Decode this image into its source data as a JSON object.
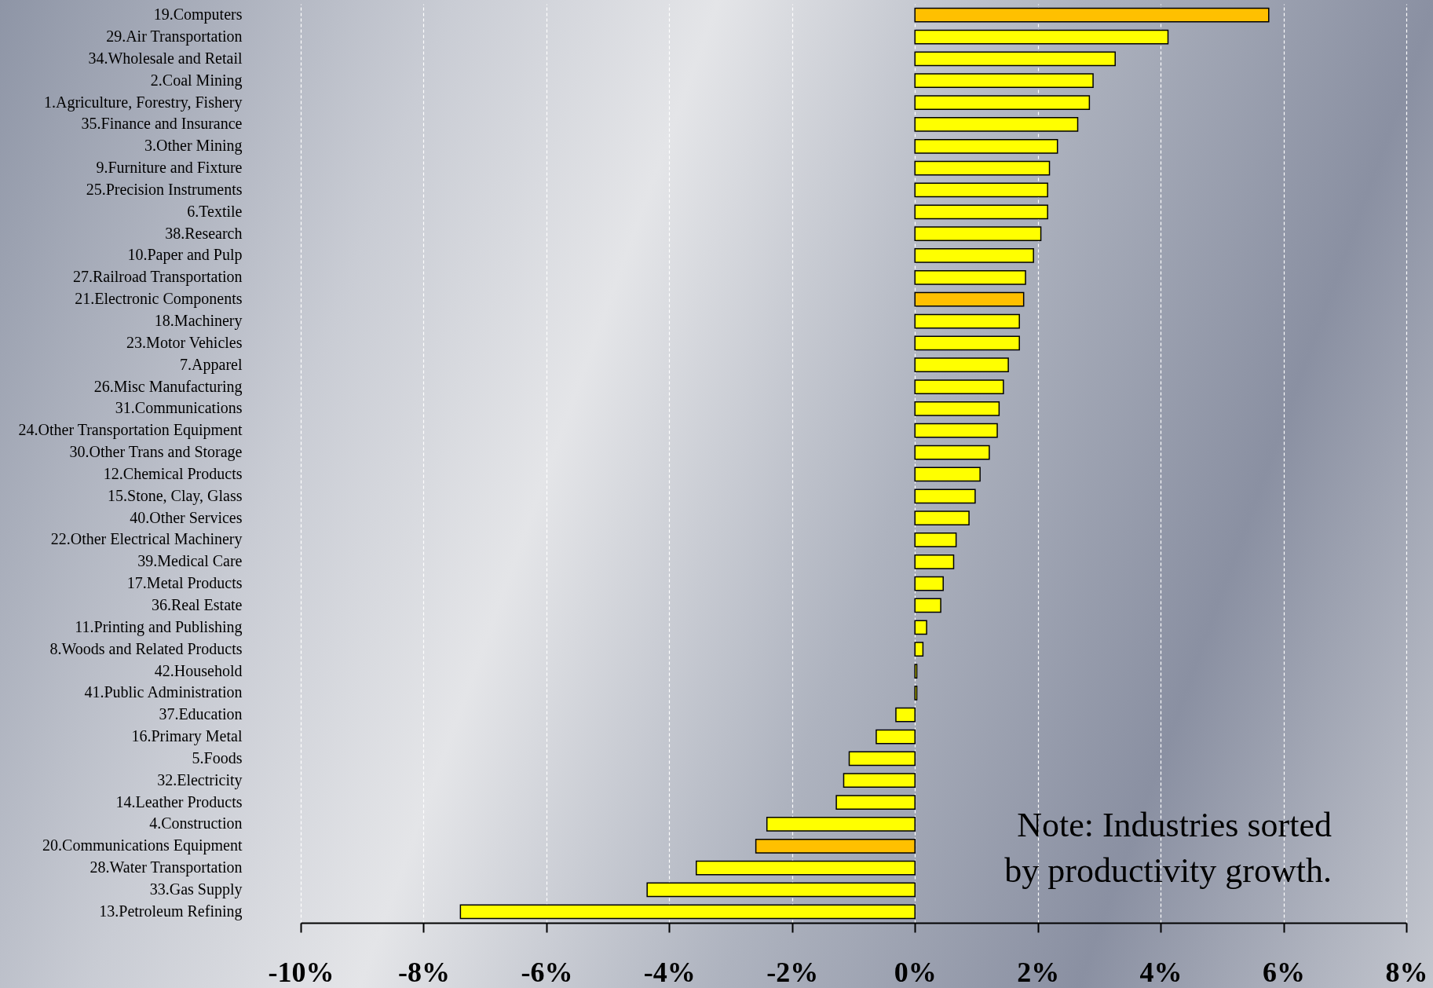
{
  "chart_data": {
    "type": "bar",
    "orientation": "horizontal",
    "categories": [
      "19.Computers",
      "29.Air Transportation",
      "34.Wholesale  and Retail",
      "2.Coal Mining",
      "1.Agriculture, Forestry, Fishery",
      "35.Finance  and Insurance",
      "3.Other Mining",
      "9.Furniture and Fixture",
      "25.Precision  Instruments",
      "6.Textile",
      "38.Research",
      "10.Paper and Pulp",
      "27.Railroad  Transportation",
      "21.Electronic  Components",
      "18.Machinery",
      "23.Motor Vehicles",
      "7.Apparel",
      "26.Misc Manufacturing",
      "31.Communications",
      "24.Other Transportation  Equipment",
      "30.Other Trans and Storage",
      "12.Chemical  Products",
      "15.Stone, Clay, Glass",
      "40.Other Services",
      "22.Other Electrical  Machinery",
      "39.Medical Care",
      "17.Metal Products",
      "36.Real Estate",
      "11.Printing  and Publishing",
      "8.Woods and Related  Products",
      "42.Household",
      "41.Public Administration",
      "37.Education",
      "16.Primary Metal",
      "5.Foods",
      "32.Electricity",
      "14.Leather  Products",
      "4.Construction",
      "20.Communications  Equipment",
      "28.Water Transportation",
      "33.Gas Supply",
      "13.Petroleum  Refining"
    ],
    "values": [
      5.76,
      4.12,
      3.26,
      2.9,
      2.84,
      2.65,
      2.32,
      2.19,
      2.16,
      2.16,
      2.05,
      1.93,
      1.8,
      1.77,
      1.7,
      1.7,
      1.52,
      1.44,
      1.37,
      1.34,
      1.21,
      1.06,
      0.98,
      0.88,
      0.67,
      0.63,
      0.46,
      0.42,
      0.19,
      0.13,
      0.03,
      0.03,
      -0.31,
      -0.63,
      -1.07,
      -1.16,
      -1.28,
      -2.41,
      -2.59,
      -3.56,
      -4.36,
      -7.4
    ],
    "colors": [
      "#ffc000",
      "#ffff00",
      "#ffff00",
      "#ffff00",
      "#ffff00",
      "#ffff00",
      "#ffff00",
      "#ffff00",
      "#ffff00",
      "#ffff00",
      "#ffff00",
      "#ffff00",
      "#ffff00",
      "#ffc000",
      "#ffff00",
      "#ffff00",
      "#ffff00",
      "#ffff00",
      "#ffff00",
      "#ffff00",
      "#ffff00",
      "#ffff00",
      "#ffff00",
      "#ffff00",
      "#ffff00",
      "#ffff00",
      "#ffff00",
      "#ffff00",
      "#ffff00",
      "#ffff00",
      "#ffff00",
      "#ffff00",
      "#ffff00",
      "#ffff00",
      "#ffff00",
      "#ffff00",
      "#ffff00",
      "#ffff00",
      "#ffc000",
      "#ffff00",
      "#ffff00",
      "#ffff00"
    ],
    "xlim": [
      -10,
      8
    ],
    "xticks": [
      {
        "value": -10,
        "label": "-10%"
      },
      {
        "value": -8,
        "label": "-8%"
      },
      {
        "value": -6,
        "label": "-6%"
      },
      {
        "value": -4,
        "label": "-4%"
      },
      {
        "value": -2,
        "label": "-2%"
      },
      {
        "value": 0,
        "label": "0%"
      },
      {
        "value": 2,
        "label": "2%"
      },
      {
        "value": 4,
        "label": "4%"
      },
      {
        "value": 6,
        "label": "6%"
      },
      {
        "value": 8,
        "label": "8%"
      }
    ],
    "grid": "x",
    "annotations": [
      {
        "text": "Note: Industries sorted\nby productivity growth."
      }
    ]
  }
}
